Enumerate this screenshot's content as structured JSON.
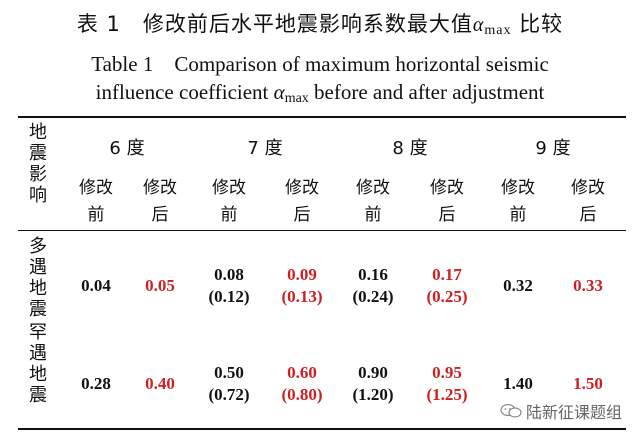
{
  "caption": {
    "cn_prefix": "表 1　修改前后水平地震影响系数最大值",
    "cn_symbol": "α",
    "cn_sub": "max",
    "cn_suffix": " 比较",
    "en_line1": "Table 1　Comparison of maximum horizontal seismic",
    "en_line2_a": "influence coefficient ",
    "en_symbol": "α",
    "en_sub": "max",
    "en_line2_b": " before and after adjustment"
  },
  "table": {
    "row_header": "地震影响",
    "degrees": [
      "6 度",
      "7 度",
      "8 度",
      "9 度"
    ],
    "sub_before": "修改前",
    "sub_after": "修改后",
    "rows": [
      {
        "label": "多遇地震",
        "cells": [
          {
            "main": "0.04",
            "alt": ""
          },
          {
            "main": "0.05",
            "alt": ""
          },
          {
            "main": "0.08",
            "alt": "(0.12)"
          },
          {
            "main": "0.09",
            "alt": "(0.13)"
          },
          {
            "main": "0.16",
            "alt": "(0.24)"
          },
          {
            "main": "0.17",
            "alt": "(0.25)"
          },
          {
            "main": "0.32",
            "alt": ""
          },
          {
            "main": "0.33",
            "alt": ""
          }
        ]
      },
      {
        "label": "罕遇地震",
        "cells": [
          {
            "main": "0.28",
            "alt": ""
          },
          {
            "main": "0.40",
            "alt": ""
          },
          {
            "main": "0.50",
            "alt": "(0.72)"
          },
          {
            "main": "0.60",
            "alt": "(0.80)"
          },
          {
            "main": "0.90",
            "alt": "(1.20)"
          },
          {
            "main": "0.95",
            "alt": "(1.25)"
          },
          {
            "main": "1.40",
            "alt": ""
          },
          {
            "main": "1.50",
            "alt": ""
          }
        ]
      }
    ]
  },
  "colors": {
    "modified": "#cc1f1f",
    "original": "#111111"
  },
  "watermark": {
    "icon": "wechat-icon",
    "text": "陆新征课题组"
  }
}
